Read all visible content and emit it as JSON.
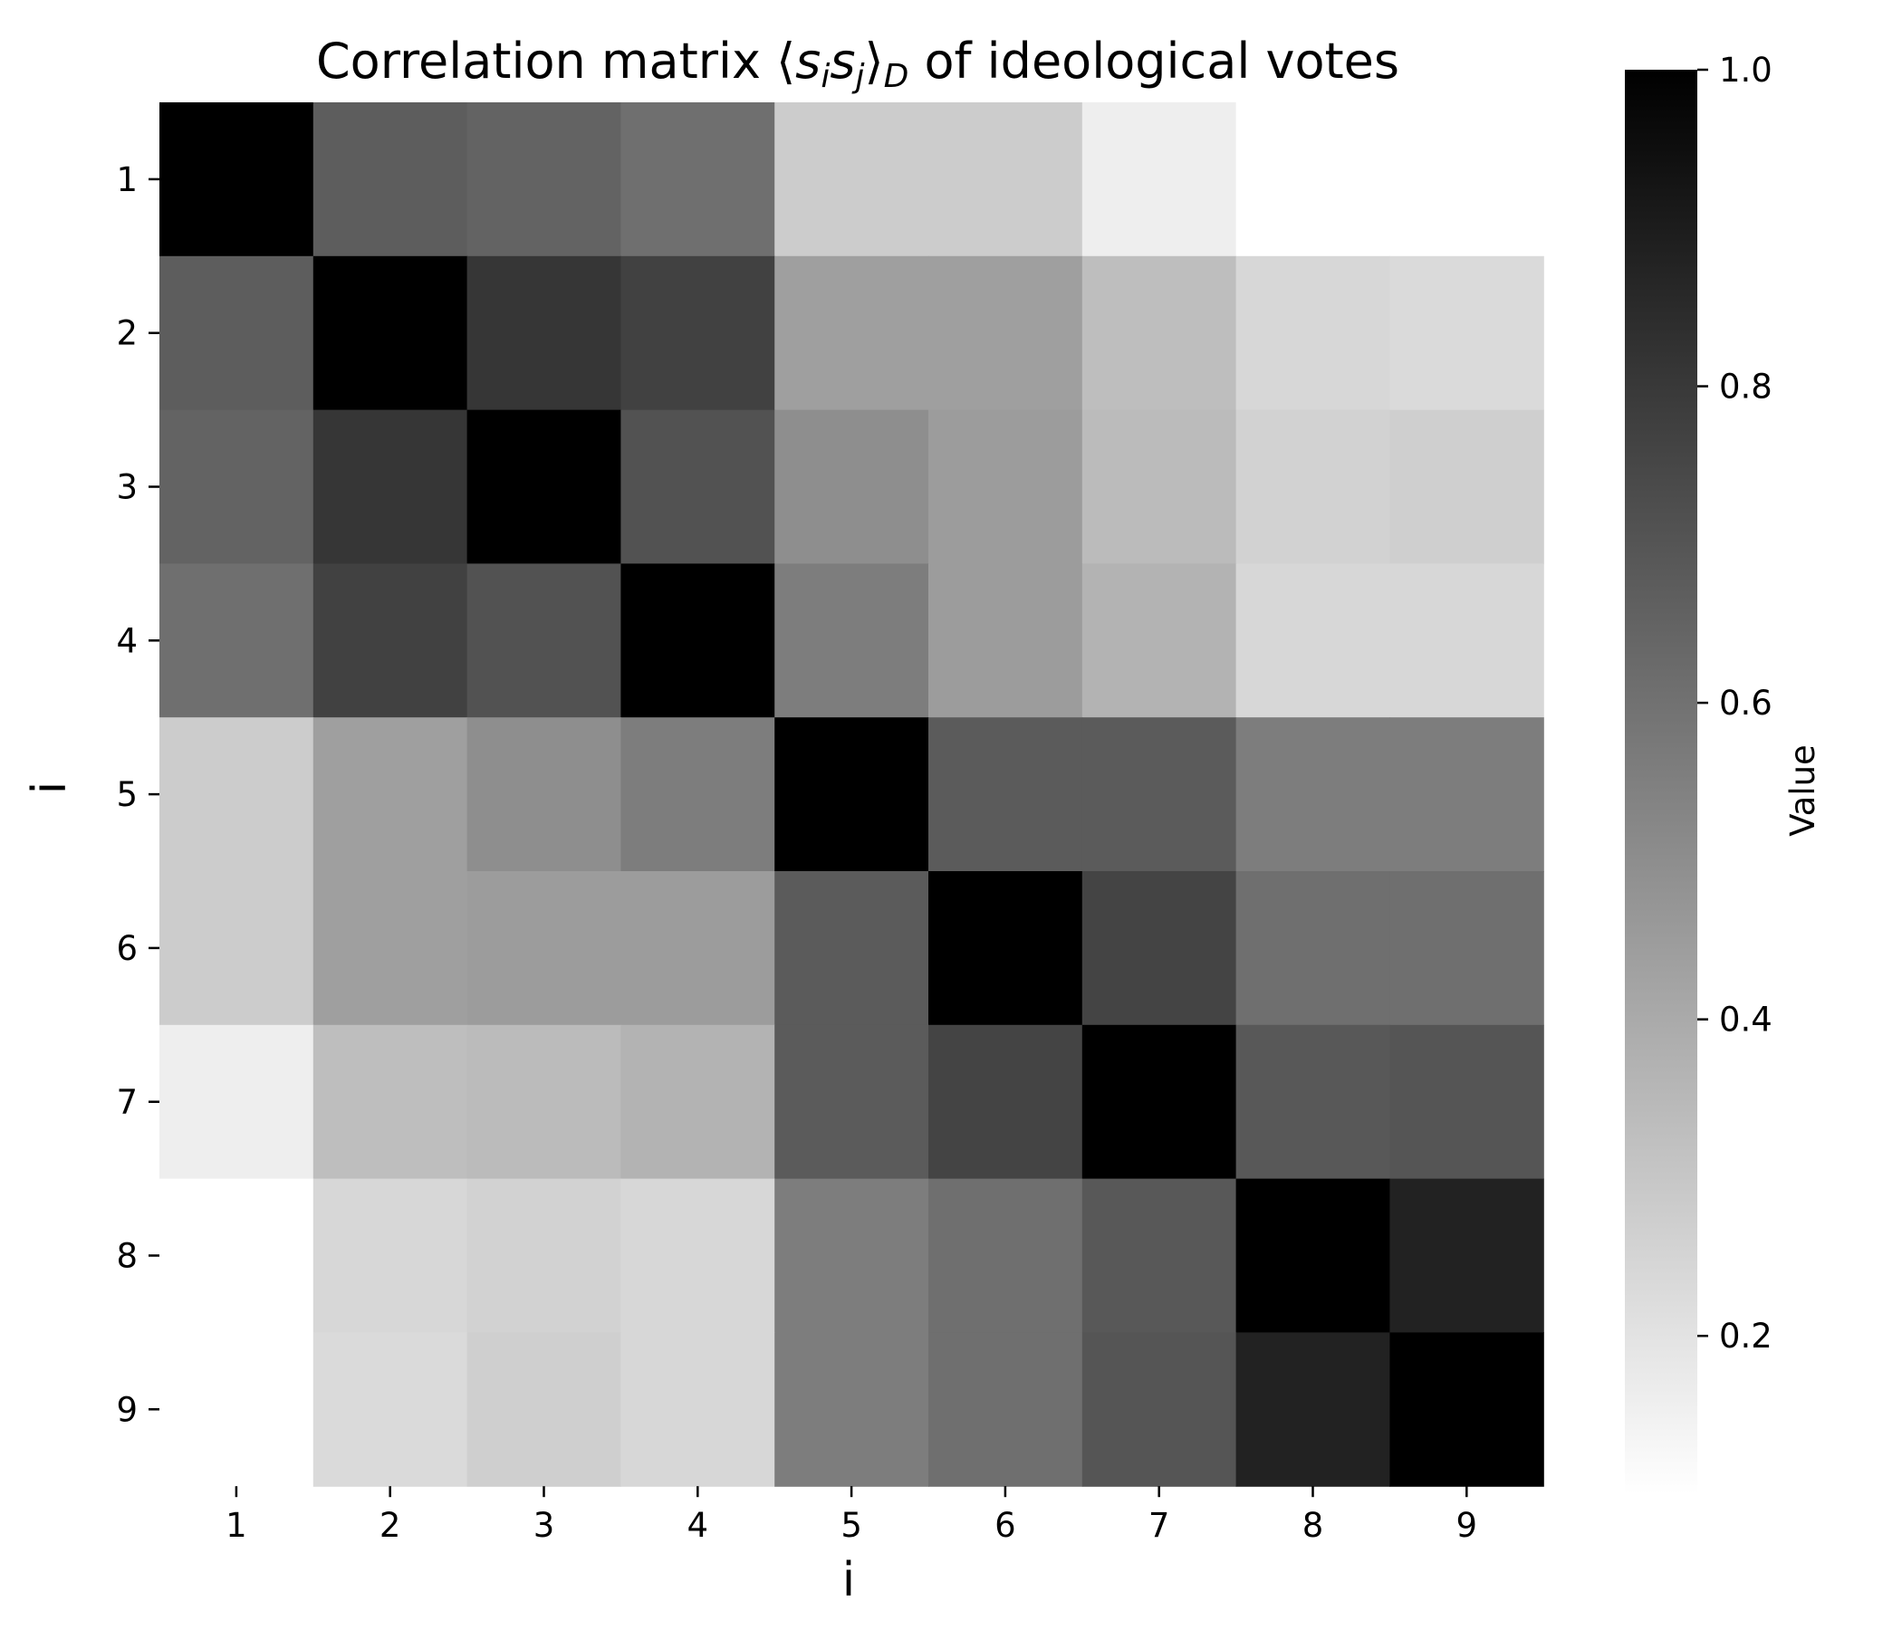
{
  "chart_data": {
    "type": "heatmap",
    "title": "Correlation matrix ⟨sᵢsⱼ⟩_D of ideological votes",
    "title_main": "Correlation matrix ⟨",
    "title_s": "s",
    "title_i": "i",
    "title_j": "j",
    "title_close": "⟩",
    "title_D": "D",
    "title_rest": " of ideological votes",
    "xlabel": "i",
    "ylabel": "i",
    "x_categories": [
      "1",
      "2",
      "3",
      "4",
      "5",
      "6",
      "7",
      "8",
      "9"
    ],
    "y_categories": [
      "1",
      "2",
      "3",
      "4",
      "5",
      "6",
      "7",
      "8",
      "9"
    ],
    "values": [
      [
        1.0,
        0.67,
        0.65,
        0.61,
        0.28,
        0.28,
        0.16,
        0.1,
        0.1
      ],
      [
        0.67,
        1.0,
        0.81,
        0.77,
        0.44,
        0.44,
        0.33,
        0.24,
        0.23
      ],
      [
        0.65,
        0.81,
        1.0,
        0.71,
        0.5,
        0.45,
        0.34,
        0.26,
        0.27
      ],
      [
        0.61,
        0.77,
        0.71,
        1.0,
        0.56,
        0.45,
        0.37,
        0.24,
        0.24
      ],
      [
        0.28,
        0.44,
        0.5,
        0.56,
        1.0,
        0.68,
        0.68,
        0.56,
        0.56
      ],
      [
        0.28,
        0.44,
        0.45,
        0.45,
        0.68,
        1.0,
        0.76,
        0.61,
        0.61
      ],
      [
        0.16,
        0.33,
        0.34,
        0.37,
        0.68,
        0.76,
        1.0,
        0.69,
        0.7
      ],
      [
        0.1,
        0.24,
        0.26,
        0.24,
        0.56,
        0.61,
        0.69,
        1.0,
        0.88
      ],
      [
        0.1,
        0.23,
        0.27,
        0.24,
        0.56,
        0.61,
        0.7,
        0.88,
        1.0
      ]
    ],
    "colormap": "Greys",
    "vmin": 0.1,
    "vmax": 1.0,
    "colorbar": {
      "label": "Value",
      "ticks": [
        0.2,
        0.4,
        0.6,
        0.8,
        1.0
      ],
      "tick_labels": [
        "0.2",
        "0.4",
        "0.6",
        "0.8",
        "1.0"
      ]
    },
    "grid": false,
    "legend": "colorbar-right",
    "colors": {
      "low": "#ffffff",
      "high": "#000000"
    }
  }
}
